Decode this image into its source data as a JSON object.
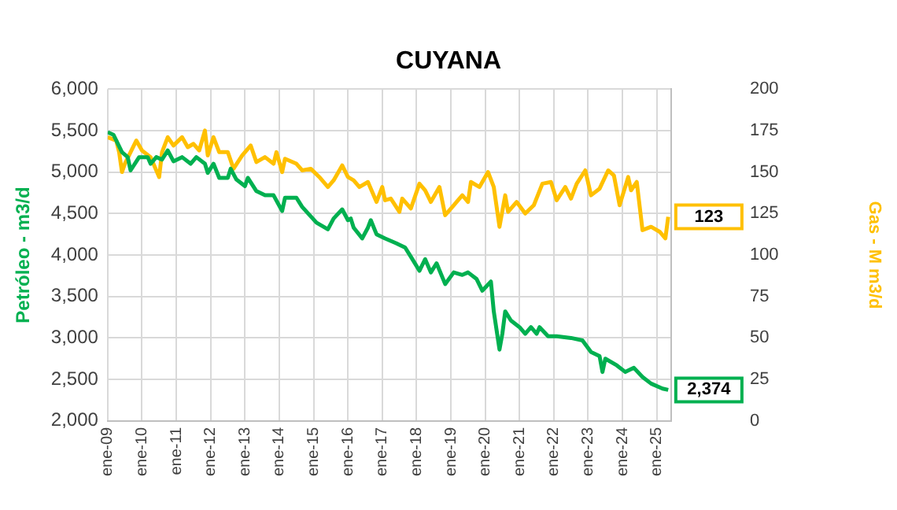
{
  "chart_data": {
    "type": "line",
    "title": "CUYANA",
    "ylabel": "Petróleo - m3/d",
    "y2label": "Gas - M m3/d",
    "xlim": [
      "2009-01",
      "2025-06"
    ],
    "xticks": [
      {
        "value": "2009-01",
        "label": "ene-09"
      },
      {
        "value": "2010-01",
        "label": "ene-10"
      },
      {
        "value": "2011-01",
        "label": "ene-11"
      },
      {
        "value": "2012-01",
        "label": "ene-12"
      },
      {
        "value": "2013-01",
        "label": "ene-13"
      },
      {
        "value": "2014-01",
        "label": "ene-14"
      },
      {
        "value": "2015-01",
        "label": "ene-15"
      },
      {
        "value": "2016-01",
        "label": "ene-16"
      },
      {
        "value": "2017-01",
        "label": "ene-17"
      },
      {
        "value": "2018-01",
        "label": "ene-18"
      },
      {
        "value": "2019-01",
        "label": "ene-19"
      },
      {
        "value": "2020-01",
        "label": "ene-20"
      },
      {
        "value": "2021-01",
        "label": "ene-21"
      },
      {
        "value": "2022-01",
        "label": "ene-22"
      },
      {
        "value": "2023-01",
        "label": "ene-23"
      },
      {
        "value": "2024-01",
        "label": "ene-24"
      },
      {
        "value": "2025-01",
        "label": "ene-25"
      }
    ],
    "ylim": [
      2000,
      6000
    ],
    "yticks": [
      {
        "value": 2000,
        "label": "2,000"
      },
      {
        "value": 2500,
        "label": "2,500"
      },
      {
        "value": 3000,
        "label": "3,000"
      },
      {
        "value": 3500,
        "label": "3,500"
      },
      {
        "value": 4000,
        "label": "4,000"
      },
      {
        "value": 4500,
        "label": "4,500"
      },
      {
        "value": 5000,
        "label": "5,000"
      },
      {
        "value": 5500,
        "label": "5,500"
      },
      {
        "value": 6000,
        "label": "6,000"
      }
    ],
    "y2lim": [
      0,
      200
    ],
    "y2ticks": [
      0,
      25,
      50,
      75,
      100,
      125,
      150,
      175,
      200
    ],
    "grid": true,
    "legend": false,
    "marker": "none",
    "line_style": "solid",
    "series": [
      {
        "color": "#00b050",
        "x": [
          "2009-01",
          "2009-03",
          "2009-06",
          "2009-08",
          "2009-09",
          "2009-12",
          "2010-03",
          "2010-04",
          "2010-06",
          "2010-08",
          "2010-10",
          "2010-12",
          "2011-03",
          "2011-06",
          "2011-08",
          "2011-11",
          "2011-12",
          "2012-02",
          "2012-04",
          "2012-07",
          "2012-08",
          "2012-10",
          "2013-01",
          "2013-02",
          "2013-05",
          "2013-08",
          "2013-11",
          "2014-02",
          "2014-03",
          "2014-07",
          "2014-09",
          "2015-02",
          "2015-06",
          "2015-08",
          "2015-11",
          "2016-01",
          "2016-02",
          "2016-03",
          "2016-06",
          "2016-08",
          "2016-09",
          "2016-11",
          "2017-02",
          "2017-06",
          "2017-09",
          "2017-11",
          "2018-02",
          "2018-04",
          "2018-06",
          "2018-08",
          "2018-11",
          "2019-02",
          "2019-05",
          "2019-07",
          "2019-10",
          "2019-12",
          "2020-03",
          "2020-04",
          "2020-06",
          "2020-07",
          "2020-08",
          "2020-10",
          "2021-01",
          "2021-03",
          "2021-05",
          "2021-07",
          "2021-08",
          "2021-11",
          "2022-02",
          "2022-07",
          "2022-11",
          "2023-02",
          "2023-05",
          "2023-06",
          "2023-07",
          "2023-11",
          "2024-02",
          "2024-05",
          "2024-08",
          "2024-11",
          "2025-03",
          "2025-05"
        ],
        "values": [
          5480,
          5450,
          5240,
          5180,
          5020,
          5180,
          5180,
          5100,
          5180,
          5150,
          5260,
          5130,
          5180,
          5100,
          5180,
          5100,
          4990,
          5100,
          4930,
          4930,
          5040,
          4910,
          4830,
          4930,
          4770,
          4720,
          4720,
          4530,
          4690,
          4690,
          4580,
          4390,
          4310,
          4440,
          4550,
          4420,
          4440,
          4330,
          4200,
          4330,
          4420,
          4250,
          4200,
          4140,
          4090,
          3980,
          3810,
          3950,
          3790,
          3900,
          3650,
          3790,
          3760,
          3790,
          3710,
          3570,
          3680,
          3320,
          2860,
          3050,
          3320,
          3210,
          3130,
          3050,
          3130,
          3050,
          3130,
          3020,
          3020,
          3000,
          2970,
          2830,
          2780,
          2590,
          2750,
          2670,
          2590,
          2640,
          2530,
          2450,
          2390,
          2374
        ],
        "value_labels": [
          null,
          null,
          null,
          null,
          null,
          null,
          null,
          null,
          null,
          null,
          null,
          null,
          null,
          null,
          null,
          null,
          null,
          null,
          null,
          null,
          null,
          null,
          null,
          null,
          null,
          null,
          null,
          null,
          null,
          null,
          null,
          null,
          null,
          null,
          null,
          null,
          null,
          null,
          null,
          null,
          null,
          null,
          null,
          null,
          null,
          null,
          null,
          null,
          null,
          null,
          null,
          null,
          null,
          null,
          null,
          null,
          null,
          null,
          null,
          null,
          null,
          null,
          null,
          null,
          null,
          null,
          null,
          null,
          null,
          null,
          null,
          null,
          null,
          null,
          null,
          null,
          null,
          null,
          null,
          null,
          null,
          "2,374"
        ]
      },
      {
        "color": "#ffc000",
        "axis": "y2",
        "x": [
          "2009-01",
          "2009-04",
          "2009-05",
          "2009-06",
          "2009-07",
          "2009-09",
          "2009-11",
          "2010-01",
          "2010-04",
          "2010-07",
          "2010-08",
          "2010-10",
          "2010-12",
          "2011-03",
          "2011-05",
          "2011-07",
          "2011-09",
          "2011-11",
          "2011-12",
          "2012-02",
          "2012-04",
          "2012-07",
          "2012-09",
          "2012-12",
          "2013-03",
          "2013-05",
          "2013-08",
          "2013-11",
          "2013-12",
          "2014-02",
          "2014-03",
          "2014-07",
          "2014-09",
          "2014-12",
          "2015-03",
          "2015-06",
          "2015-08",
          "2015-11",
          "2016-01",
          "2016-03",
          "2016-05",
          "2016-08",
          "2016-11",
          "2017-01",
          "2017-02",
          "2017-04",
          "2017-07",
          "2017-08",
          "2017-11",
          "2018-02",
          "2018-04",
          "2018-06",
          "2018-09",
          "2018-11",
          "2019-02",
          "2019-05",
          "2019-07",
          "2019-08",
          "2019-11",
          "2020-02",
          "2020-04",
          "2020-06",
          "2020-08",
          "2020-09",
          "2020-12",
          "2021-03",
          "2021-06",
          "2021-09",
          "2021-12",
          "2022-02",
          "2022-05",
          "2022-07",
          "2022-09",
          "2022-12",
          "2023-02",
          "2023-05",
          "2023-08",
          "2023-10",
          "2023-12",
          "2024-03",
          "2024-04",
          "2024-06",
          "2024-08",
          "2024-11",
          "2025-02",
          "2025-04",
          "2025-05"
        ],
        "values": [
          171,
          169,
          162,
          150,
          155,
          162,
          169,
          163,
          159,
          147,
          162,
          171,
          166,
          171,
          165,
          167,
          163,
          175,
          160,
          171,
          162,
          162,
          152,
          160,
          166,
          156,
          159,
          155,
          162,
          150,
          158,
          155,
          151,
          152,
          147,
          141,
          145,
          154,
          147,
          145,
          141,
          144,
          132,
          141,
          133,
          134,
          126,
          134,
          128,
          143,
          139,
          132,
          141,
          124,
          130,
          136,
          132,
          144,
          141,
          150,
          141,
          117,
          136,
          126,
          132,
          125,
          130,
          143,
          144,
          133,
          141,
          134,
          143,
          151,
          136,
          140,
          151,
          148,
          130,
          147,
          139,
          144,
          115,
          117,
          114,
          110,
          123
        ],
        "value_labels": [
          null,
          null,
          null,
          null,
          null,
          null,
          null,
          null,
          null,
          null,
          null,
          null,
          null,
          null,
          null,
          null,
          null,
          null,
          null,
          null,
          null,
          null,
          null,
          null,
          null,
          null,
          null,
          null,
          null,
          null,
          null,
          null,
          null,
          null,
          null,
          null,
          null,
          null,
          null,
          null,
          null,
          null,
          null,
          null,
          null,
          null,
          null,
          null,
          null,
          null,
          null,
          null,
          null,
          null,
          null,
          null,
          null,
          null,
          null,
          null,
          null,
          null,
          null,
          null,
          null,
          null,
          null,
          null,
          null,
          null,
          null,
          null,
          null,
          null,
          null,
          null,
          null,
          null,
          null,
          null,
          null,
          null,
          null,
          null,
          null,
          null,
          "123"
        ]
      }
    ]
  }
}
